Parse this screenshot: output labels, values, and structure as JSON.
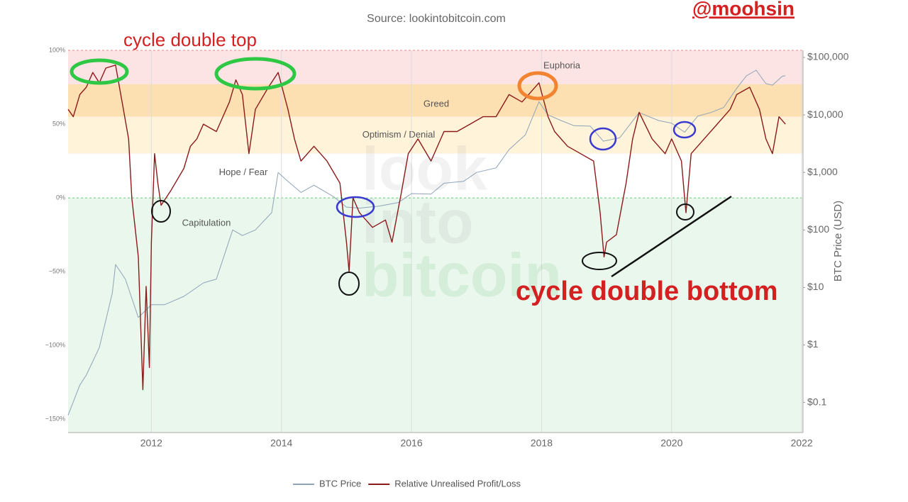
{
  "chart_data": {
    "type": "line",
    "title": "Source: lookintobitcoin.com",
    "watermark": [
      "look",
      "into",
      "bitcoin"
    ],
    "annotations": [
      "cycle double top",
      "cycle double bottom",
      "@moohsin"
    ],
    "y2_label": "BTC Price (USD)",
    "xlim": [
      2010.72,
      2022.02
    ],
    "xticks": [
      2012,
      2014,
      2016,
      2018,
      2020,
      2022
    ],
    "ylim": [
      -159,
      100
    ],
    "yticks": [
      {
        "value": 100,
        "label": "100%"
      },
      {
        "value": 50,
        "label": "50%"
      },
      {
        "value": 0,
        "label": "0%"
      },
      {
        "value": -50,
        "label": "−50%"
      },
      {
        "value": -100,
        "label": "−100%"
      },
      {
        "value": -150,
        "label": "−150%"
      }
    ],
    "y2lim": [
      0.03,
      133000
    ],
    "y2_log": true,
    "y2ticks": [
      {
        "value": 100000,
        "label": "$100,000"
      },
      {
        "value": 10000,
        "label": "$10,000"
      },
      {
        "value": 1000,
        "label": "$1,000"
      },
      {
        "value": 100,
        "label": "$100"
      },
      {
        "value": 10,
        "label": "$10"
      },
      {
        "value": 1,
        "label": "$1"
      },
      {
        "value": 0.1,
        "label": "$0.1"
      }
    ],
    "grid": true,
    "zones": [
      {
        "label": "Euphoria",
        "from": 77,
        "to": 100,
        "color": "#fde4e4"
      },
      {
        "label": "Greed",
        "from": 55,
        "to": 77,
        "color": "#fde0b2"
      },
      {
        "label": "Optimism / Denial",
        "from": 30,
        "to": 55,
        "color": "#fff3da"
      },
      {
        "label": "Hope / Fear",
        "from": 0,
        "to": 30,
        "color": "#ffffff"
      },
      {
        "label": "Capitulation",
        "from": -159,
        "to": 0,
        "color": "#e9f7ed"
      }
    ],
    "series": [
      {
        "name": "BTC Price",
        "color": "#8fa3b8",
        "axis": "y2",
        "x": [
          2010.72,
          2010.9,
          2011.0,
          2011.2,
          2011.4,
          2011.45,
          2011.6,
          2011.8,
          2012.0,
          2012.2,
          2012.5,
          2012.8,
          2013.0,
          2013.25,
          2013.4,
          2013.6,
          2013.85,
          2013.95,
          2014.1,
          2014.3,
          2014.5,
          2014.8,
          2015.0,
          2015.2,
          2015.5,
          2015.8,
          2016.0,
          2016.3,
          2016.5,
          2016.8,
          2017.0,
          2017.3,
          2017.5,
          2017.75,
          2017.96,
          2018.1,
          2018.3,
          2018.5,
          2018.75,
          2018.95,
          2019.2,
          2019.5,
          2019.8,
          2020.0,
          2020.2,
          2020.4,
          2020.6,
          2020.8,
          2021.0,
          2021.15,
          2021.3,
          2021.45,
          2021.55,
          2021.7,
          2021.75
        ],
        "values": [
          0.06,
          0.2,
          0.3,
          0.9,
          8,
          25,
          14,
          3,
          5,
          5,
          7,
          12,
          14,
          100,
          80,
          100,
          200,
          1000,
          700,
          450,
          600,
          380,
          250,
          240,
          260,
          300,
          430,
          420,
          650,
          700,
          1000,
          1200,
          2500,
          4500,
          17000,
          10000,
          8000,
          6500,
          6400,
          3500,
          4000,
          11000,
          8000,
          7200,
          5000,
          9500,
          11000,
          13500,
          29000,
          48000,
          60000,
          35000,
          33000,
          47000,
          48000
        ]
      },
      {
        "name": "Relative Unrealised Profit/Loss",
        "color": "#8b1a1a",
        "axis": "y",
        "x": [
          2010.72,
          2010.8,
          2010.9,
          2011.0,
          2011.1,
          2011.2,
          2011.3,
          2011.45,
          2011.55,
          2011.65,
          2011.7,
          2011.75,
          2011.8,
          2011.87,
          2011.92,
          2011.97,
          2012.0,
          2012.05,
          2012.1,
          2012.15,
          2012.3,
          2012.5,
          2012.6,
          2012.7,
          2012.8,
          2013.0,
          2013.2,
          2013.3,
          2013.4,
          2013.5,
          2013.6,
          2013.8,
          2013.95,
          2014.1,
          2014.2,
          2014.3,
          2014.5,
          2014.7,
          2014.9,
          2015.0,
          2015.04,
          2015.1,
          2015.2,
          2015.4,
          2015.6,
          2015.7,
          2015.85,
          2015.95,
          2016.1,
          2016.3,
          2016.5,
          2016.7,
          2016.9,
          2017.1,
          2017.3,
          2017.5,
          2017.7,
          2017.96,
          2018.1,
          2018.2,
          2018.4,
          2018.6,
          2018.8,
          2018.9,
          2018.96,
          2019.0,
          2019.15,
          2019.3,
          2019.4,
          2019.5,
          2019.7,
          2019.9,
          2020.0,
          2020.15,
          2020.2,
          2020.22,
          2020.3,
          2020.5,
          2020.7,
          2020.9,
          2021.0,
          2021.2,
          2021.35,
          2021.45,
          2021.55,
          2021.65,
          2021.75
        ],
        "values": [
          60,
          55,
          70,
          75,
          85,
          78,
          88,
          90,
          65,
          40,
          0,
          -20,
          -40,
          -130,
          -60,
          -115,
          -30,
          30,
          10,
          -5,
          5,
          20,
          35,
          40,
          50,
          45,
          65,
          80,
          70,
          30,
          60,
          75,
          85,
          60,
          40,
          25,
          35,
          25,
          10,
          -30,
          -50,
          0,
          -10,
          -20,
          -15,
          -30,
          5,
          30,
          40,
          25,
          45,
          45,
          50,
          55,
          55,
          70,
          65,
          78,
          55,
          45,
          35,
          30,
          25,
          -10,
          -40,
          -30,
          -25,
          10,
          40,
          58,
          40,
          30,
          40,
          25,
          0,
          -10,
          30,
          40,
          50,
          60,
          70,
          75,
          60,
          40,
          30,
          55,
          50
        ]
      }
    ]
  }
}
